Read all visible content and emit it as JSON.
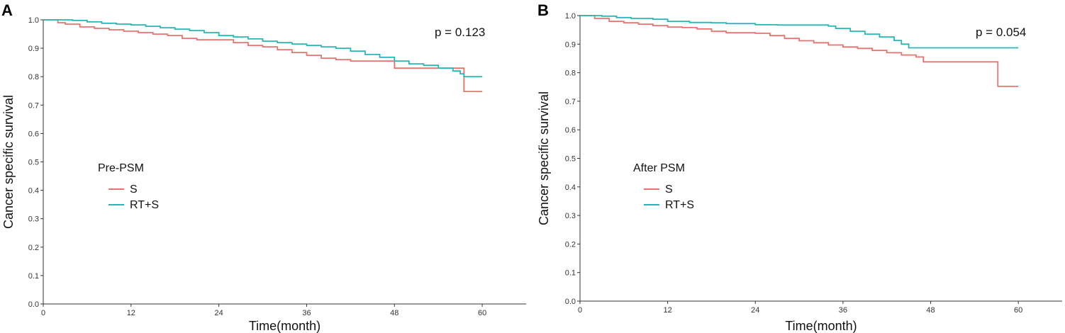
{
  "chart_data": [
    {
      "type": "line",
      "panel_label": "A",
      "title": "",
      "xlabel": "Time(month)",
      "ylabel": "Cancer specific survival",
      "xlim": [
        0,
        66
      ],
      "ylim": [
        0,
        1.0
      ],
      "xticks": [
        0,
        12,
        24,
        36,
        48,
        60
      ],
      "yticks": [
        0.0,
        0.1,
        0.2,
        0.3,
        0.4,
        0.5,
        0.6,
        0.7,
        0.8,
        0.9,
        1.0
      ],
      "grid": false,
      "annotation": "p = 0.123",
      "legend": {
        "title": "Pre-PSM",
        "position": "center-left"
      },
      "series": [
        {
          "name": "S",
          "color": "#E8736C",
          "points": [
            [
              0,
              1.0
            ],
            [
              2,
              0.99
            ],
            [
              3,
              0.985
            ],
            [
              5,
              0.975
            ],
            [
              7,
              0.97
            ],
            [
              9,
              0.965
            ],
            [
              11,
              0.96
            ],
            [
              13,
              0.955
            ],
            [
              15,
              0.95
            ],
            [
              17,
              0.945
            ],
            [
              19,
              0.935
            ],
            [
              21,
              0.93
            ],
            [
              24,
              0.93
            ],
            [
              26,
              0.92
            ],
            [
              28,
              0.91
            ],
            [
              30,
              0.905
            ],
            [
              32,
              0.895
            ],
            [
              34,
              0.885
            ],
            [
              36,
              0.875
            ],
            [
              38,
              0.865
            ],
            [
              40,
              0.86
            ],
            [
              42,
              0.855
            ],
            [
              47,
              0.855
            ],
            [
              48,
              0.83
            ],
            [
              57,
              0.83
            ],
            [
              57.5,
              0.748
            ],
            [
              60,
              0.748
            ]
          ]
        },
        {
          "name": "RT+S",
          "color": "#2BB5B5",
          "points": [
            [
              0,
              1.0
            ],
            [
              4,
              0.998
            ],
            [
              6,
              0.993
            ],
            [
              8,
              0.988
            ],
            [
              10,
              0.985
            ],
            [
              12,
              0.982
            ],
            [
              14,
              0.977
            ],
            [
              16,
              0.972
            ],
            [
              18,
              0.967
            ],
            [
              20,
              0.962
            ],
            [
              22,
              0.955
            ],
            [
              24,
              0.945
            ],
            [
              26,
              0.94
            ],
            [
              28,
              0.933
            ],
            [
              30,
              0.925
            ],
            [
              32,
              0.92
            ],
            [
              34,
              0.915
            ],
            [
              36,
              0.91
            ],
            [
              38,
              0.905
            ],
            [
              40,
              0.9
            ],
            [
              42,
              0.89
            ],
            [
              44,
              0.878
            ],
            [
              46,
              0.868
            ],
            [
              48,
              0.855
            ],
            [
              50,
              0.845
            ],
            [
              52,
              0.84
            ],
            [
              54,
              0.83
            ],
            [
              56,
              0.82
            ],
            [
              57,
              0.81
            ],
            [
              57.5,
              0.8
            ],
            [
              60,
              0.8
            ]
          ]
        }
      ]
    },
    {
      "type": "line",
      "panel_label": "B",
      "title": "",
      "xlabel": "Time(month)",
      "ylabel": "Cancer specific survival",
      "xlim": [
        0,
        66
      ],
      "ylim": [
        0,
        1.0
      ],
      "xticks": [
        0,
        12,
        24,
        36,
        48,
        60
      ],
      "yticks": [
        0.0,
        0.1,
        0.2,
        0.3,
        0.4,
        0.5,
        0.6,
        0.7,
        0.8,
        0.9,
        1.0
      ],
      "grid": false,
      "annotation": "p = 0.054",
      "legend": {
        "title": "After PSM",
        "position": "center-left"
      },
      "series": [
        {
          "name": "S",
          "color": "#E8736C",
          "points": [
            [
              0,
              1.0
            ],
            [
              2,
              0.99
            ],
            [
              4,
              0.98
            ],
            [
              6,
              0.975
            ],
            [
              8,
              0.97
            ],
            [
              10,
              0.965
            ],
            [
              12,
              0.96
            ],
            [
              14,
              0.958
            ],
            [
              16,
              0.953
            ],
            [
              18,
              0.945
            ],
            [
              20,
              0.94
            ],
            [
              24,
              0.938
            ],
            [
              26,
              0.93
            ],
            [
              28,
              0.92
            ],
            [
              30,
              0.912
            ],
            [
              32,
              0.905
            ],
            [
              34,
              0.897
            ],
            [
              36,
              0.89
            ],
            [
              38,
              0.885
            ],
            [
              40,
              0.878
            ],
            [
              42,
              0.87
            ],
            [
              44,
              0.862
            ],
            [
              46,
              0.855
            ],
            [
              47,
              0.838
            ],
            [
              57,
              0.838
            ],
            [
              57.2,
              0.752
            ],
            [
              60,
              0.752
            ]
          ]
        },
        {
          "name": "RT+S",
          "color": "#2BB5B5",
          "points": [
            [
              0,
              1.0
            ],
            [
              3,
              0.998
            ],
            [
              5,
              0.993
            ],
            [
              7,
              0.99
            ],
            [
              10,
              0.987
            ],
            [
              12,
              0.98
            ],
            [
              15,
              0.976
            ],
            [
              18,
              0.975
            ],
            [
              20,
              0.972
            ],
            [
              24,
              0.968
            ],
            [
              27,
              0.967
            ],
            [
              32,
              0.967
            ],
            [
              34,
              0.963
            ],
            [
              35,
              0.955
            ],
            [
              37,
              0.945
            ],
            [
              39,
              0.935
            ],
            [
              41,
              0.925
            ],
            [
              43,
              0.913
            ],
            [
              44,
              0.9
            ],
            [
              45,
              0.887
            ],
            [
              60,
              0.887
            ]
          ]
        }
      ]
    }
  ]
}
